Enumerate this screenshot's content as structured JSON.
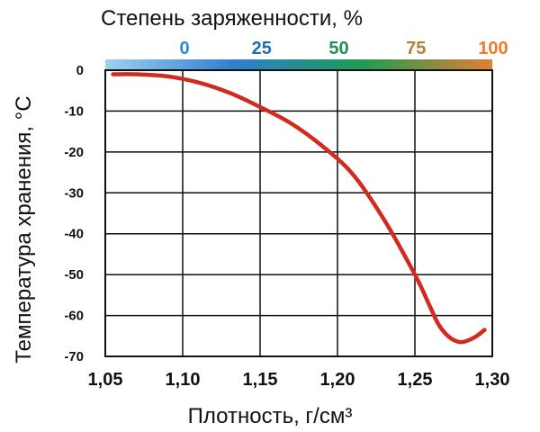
{
  "chart_data": {
    "type": "line",
    "xlabel": "Плотность, г/см³",
    "ylabel": "Температура хранения, °С",
    "top_axis_label": "Степень заряженности, %",
    "xlim": [
      1.05,
      1.3
    ],
    "ylim": [
      -70,
      0
    ],
    "x_ticks": [
      "1,05",
      "1,10",
      "1,15",
      "1,20",
      "1,25",
      "1,30"
    ],
    "y_ticks": [
      "0",
      "-10",
      "-20",
      "-30",
      "-40",
      "-50",
      "-60",
      "-70"
    ],
    "top_ticks": [
      {
        "label": "0",
        "color": "#2a8bd0"
      },
      {
        "label": "25",
        "color": "#1f6db0"
      },
      {
        "label": "50",
        "color": "#1e8f55"
      },
      {
        "label": "75",
        "color": "#b58038"
      },
      {
        "label": "100",
        "color": "#ee7a2a"
      }
    ],
    "grid": true,
    "line_color": "#d22a1f",
    "gradient_colors": [
      "#9ed0f0",
      "#2f7fd0",
      "#1f9c50",
      "#e27f35"
    ],
    "series": [
      {
        "x": [
          1.055,
          1.07,
          1.09,
          1.11,
          1.13,
          1.15,
          1.17,
          1.19,
          1.21,
          1.23,
          1.25,
          1.26,
          1.265,
          1.27,
          1.275,
          1.28,
          1.285,
          1.29,
          1.295
        ],
        "y": [
          -1,
          -1,
          -1.5,
          -3,
          -5.5,
          -9,
          -13,
          -18.5,
          -25.5,
          -36.5,
          -50,
          -58,
          -62,
          -64.5,
          -66,
          -66.5,
          -66,
          -65,
          -63.5
        ]
      }
    ]
  }
}
